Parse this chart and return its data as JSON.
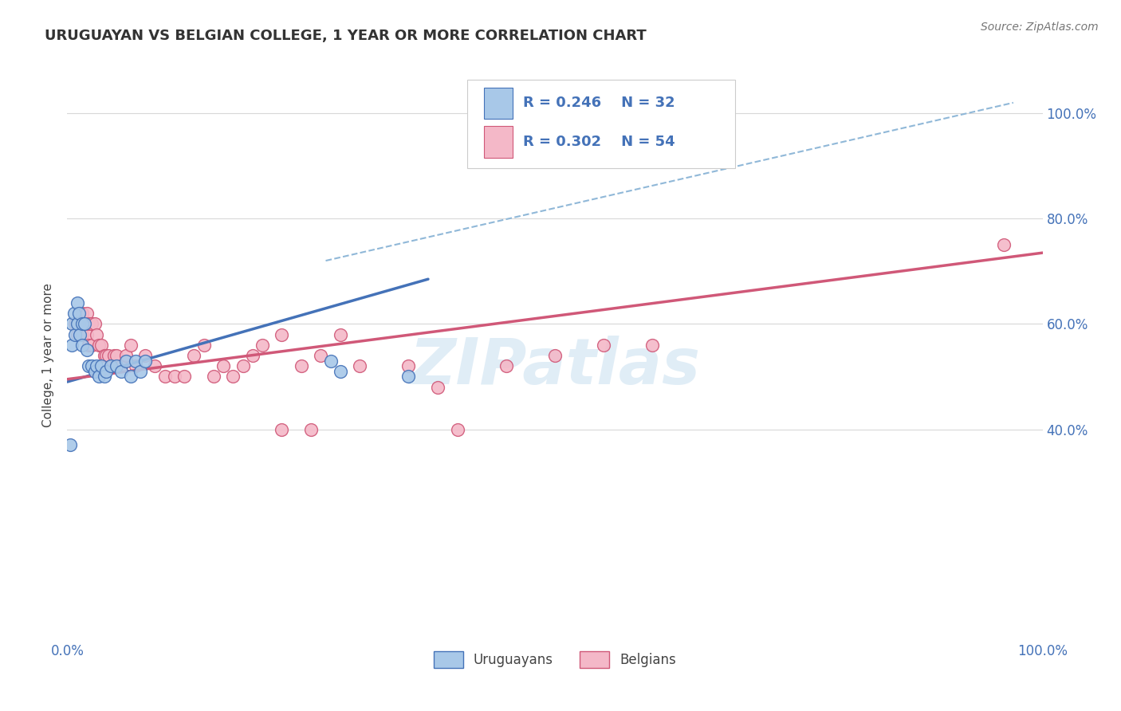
{
  "title": "URUGUAYAN VS BELGIAN COLLEGE, 1 YEAR OR MORE CORRELATION CHART",
  "source_text": "Source: ZipAtlas.com",
  "ylabel": "College, 1 year or more",
  "legend_label1": "Uruguayans",
  "legend_label2": "Belgians",
  "legend_r1": "R = 0.246",
  "legend_n1": "N = 32",
  "legend_r2": "R = 0.302",
  "legend_n2": "N = 54",
  "watermark": "ZIPatlas",
  "color_blue": "#a8c8e8",
  "color_pink": "#f4b8c8",
  "color_blue_line": "#4472b8",
  "color_pink_line": "#d05878",
  "color_dashed": "#90b8d8",
  "color_legend_text": "#4472b8",
  "background_color": "#ffffff",
  "grid_color": "#d8d8d8",
  "uruguayan_x": [
    0.005,
    0.005,
    0.007,
    0.008,
    0.01,
    0.01,
    0.012,
    0.013,
    0.015,
    0.015,
    0.018,
    0.02,
    0.022,
    0.025,
    0.028,
    0.03,
    0.032,
    0.035,
    0.038,
    0.04,
    0.045,
    0.05,
    0.055,
    0.06,
    0.065,
    0.07,
    0.075,
    0.08,
    0.27,
    0.28,
    0.35,
    0.003
  ],
  "uruguayan_y": [
    0.56,
    0.6,
    0.62,
    0.58,
    0.64,
    0.6,
    0.62,
    0.58,
    0.6,
    0.56,
    0.6,
    0.55,
    0.52,
    0.52,
    0.51,
    0.52,
    0.5,
    0.52,
    0.5,
    0.51,
    0.52,
    0.52,
    0.51,
    0.53,
    0.5,
    0.53,
    0.51,
    0.53,
    0.53,
    0.51,
    0.5,
    0.37
  ],
  "belgian_x": [
    0.008,
    0.01,
    0.012,
    0.015,
    0.015,
    0.018,
    0.02,
    0.02,
    0.022,
    0.022,
    0.025,
    0.025,
    0.028,
    0.03,
    0.032,
    0.035,
    0.038,
    0.04,
    0.042,
    0.045,
    0.048,
    0.05,
    0.055,
    0.06,
    0.065,
    0.07,
    0.08,
    0.09,
    0.1,
    0.11,
    0.12,
    0.13,
    0.14,
    0.15,
    0.16,
    0.17,
    0.18,
    0.19,
    0.2,
    0.22,
    0.24,
    0.26,
    0.28,
    0.3,
    0.35,
    0.38,
    0.4,
    0.45,
    0.5,
    0.55,
    0.6,
    0.22,
    0.25,
    0.96
  ],
  "belgian_y": [
    0.6,
    0.58,
    0.6,
    0.62,
    0.58,
    0.6,
    0.62,
    0.58,
    0.6,
    0.56,
    0.6,
    0.56,
    0.6,
    0.58,
    0.56,
    0.56,
    0.54,
    0.54,
    0.54,
    0.52,
    0.54,
    0.54,
    0.52,
    0.54,
    0.56,
    0.52,
    0.54,
    0.52,
    0.5,
    0.5,
    0.5,
    0.54,
    0.56,
    0.5,
    0.52,
    0.5,
    0.52,
    0.54,
    0.56,
    0.58,
    0.52,
    0.54,
    0.58,
    0.52,
    0.52,
    0.48,
    0.4,
    0.52,
    0.54,
    0.56,
    0.56,
    0.4,
    0.4,
    0.75
  ],
  "uru_line_x": [
    0.0,
    0.37
  ],
  "uru_line_y": [
    0.49,
    0.685
  ],
  "bel_line_x": [
    0.0,
    1.0
  ],
  "bel_line_y": [
    0.495,
    0.735
  ],
  "dash_line_x": [
    0.265,
    0.97
  ],
  "dash_line_y": [
    0.72,
    1.02
  ],
  "xlim": [
    0.0,
    1.0
  ],
  "ylim": [
    0.0,
    1.08
  ],
  "yticks": [
    0.4,
    0.6,
    0.8,
    1.0
  ],
  "yticklabels": [
    "40.0%",
    "60.0%",
    "80.0%",
    "100.0%"
  ],
  "xtick_start": "0.0%",
  "xtick_end": "100.0%"
}
